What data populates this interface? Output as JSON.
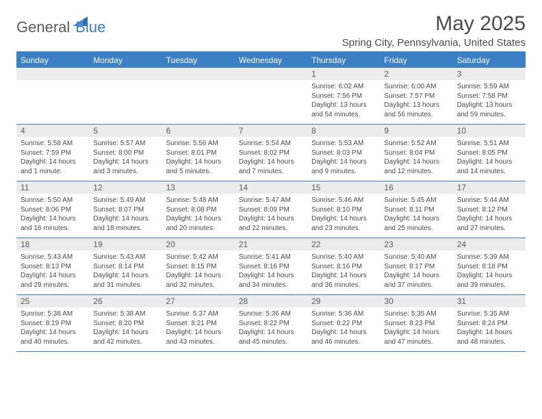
{
  "brand": {
    "general": "General",
    "blue": "Blue"
  },
  "header": {
    "monthTitle": "May 2025",
    "location": "Spring City, Pennsylvania, United States"
  },
  "colors": {
    "accent": "#3b7fc4",
    "headerText": "#ffffff",
    "dayNumBg": "#ececec",
    "textGray": "#4a4a4a",
    "logoGray": "#5a5a5a"
  },
  "dayNames": [
    "Sunday",
    "Monday",
    "Tuesday",
    "Wednesday",
    "Thursday",
    "Friday",
    "Saturday"
  ],
  "weeks": [
    [
      {
        "num": "",
        "sunrise": "",
        "sunset": "",
        "daylight": ""
      },
      {
        "num": "",
        "sunrise": "",
        "sunset": "",
        "daylight": ""
      },
      {
        "num": "",
        "sunrise": "",
        "sunset": "",
        "daylight": ""
      },
      {
        "num": "",
        "sunrise": "",
        "sunset": "",
        "daylight": ""
      },
      {
        "num": "1",
        "sunrise": "Sunrise: 6:02 AM",
        "sunset": "Sunset: 7:56 PM",
        "daylight": "Daylight: 13 hours and 54 minutes."
      },
      {
        "num": "2",
        "sunrise": "Sunrise: 6:00 AM",
        "sunset": "Sunset: 7:57 PM",
        "daylight": "Daylight: 13 hours and 56 minutes."
      },
      {
        "num": "3",
        "sunrise": "Sunrise: 5:59 AM",
        "sunset": "Sunset: 7:58 PM",
        "daylight": "Daylight: 13 hours and 59 minutes."
      }
    ],
    [
      {
        "num": "4",
        "sunrise": "Sunrise: 5:58 AM",
        "sunset": "Sunset: 7:59 PM",
        "daylight": "Daylight: 14 hours and 1 minute."
      },
      {
        "num": "5",
        "sunrise": "Sunrise: 5:57 AM",
        "sunset": "Sunset: 8:00 PM",
        "daylight": "Daylight: 14 hours and 3 minutes."
      },
      {
        "num": "6",
        "sunrise": "Sunrise: 5:56 AM",
        "sunset": "Sunset: 8:01 PM",
        "daylight": "Daylight: 14 hours and 5 minutes."
      },
      {
        "num": "7",
        "sunrise": "Sunrise: 5:54 AM",
        "sunset": "Sunset: 8:02 PM",
        "daylight": "Daylight: 14 hours and 7 minutes."
      },
      {
        "num": "8",
        "sunrise": "Sunrise: 5:53 AM",
        "sunset": "Sunset: 8:03 PM",
        "daylight": "Daylight: 14 hours and 9 minutes."
      },
      {
        "num": "9",
        "sunrise": "Sunrise: 5:52 AM",
        "sunset": "Sunset: 8:04 PM",
        "daylight": "Daylight: 14 hours and 12 minutes."
      },
      {
        "num": "10",
        "sunrise": "Sunrise: 5:51 AM",
        "sunset": "Sunset: 8:05 PM",
        "daylight": "Daylight: 14 hours and 14 minutes."
      }
    ],
    [
      {
        "num": "11",
        "sunrise": "Sunrise: 5:50 AM",
        "sunset": "Sunset: 8:06 PM",
        "daylight": "Daylight: 14 hours and 16 minutes."
      },
      {
        "num": "12",
        "sunrise": "Sunrise: 5:49 AM",
        "sunset": "Sunset: 8:07 PM",
        "daylight": "Daylight: 14 hours and 18 minutes."
      },
      {
        "num": "13",
        "sunrise": "Sunrise: 5:48 AM",
        "sunset": "Sunset: 8:08 PM",
        "daylight": "Daylight: 14 hours and 20 minutes."
      },
      {
        "num": "14",
        "sunrise": "Sunrise: 5:47 AM",
        "sunset": "Sunset: 8:09 PM",
        "daylight": "Daylight: 14 hours and 22 minutes."
      },
      {
        "num": "15",
        "sunrise": "Sunrise: 5:46 AM",
        "sunset": "Sunset: 8:10 PM",
        "daylight": "Daylight: 14 hours and 23 minutes."
      },
      {
        "num": "16",
        "sunrise": "Sunrise: 5:45 AM",
        "sunset": "Sunset: 8:11 PM",
        "daylight": "Daylight: 14 hours and 25 minutes."
      },
      {
        "num": "17",
        "sunrise": "Sunrise: 5:44 AM",
        "sunset": "Sunset: 8:12 PM",
        "daylight": "Daylight: 14 hours and 27 minutes."
      }
    ],
    [
      {
        "num": "18",
        "sunrise": "Sunrise: 5:43 AM",
        "sunset": "Sunset: 8:13 PM",
        "daylight": "Daylight: 14 hours and 29 minutes."
      },
      {
        "num": "19",
        "sunrise": "Sunrise: 5:43 AM",
        "sunset": "Sunset: 8:14 PM",
        "daylight": "Daylight: 14 hours and 31 minutes."
      },
      {
        "num": "20",
        "sunrise": "Sunrise: 5:42 AM",
        "sunset": "Sunset: 8:15 PM",
        "daylight": "Daylight: 14 hours and 32 minutes."
      },
      {
        "num": "21",
        "sunrise": "Sunrise: 5:41 AM",
        "sunset": "Sunset: 8:16 PM",
        "daylight": "Daylight: 14 hours and 34 minutes."
      },
      {
        "num": "22",
        "sunrise": "Sunrise: 5:40 AM",
        "sunset": "Sunset: 8:16 PM",
        "daylight": "Daylight: 14 hours and 36 minutes."
      },
      {
        "num": "23",
        "sunrise": "Sunrise: 5:40 AM",
        "sunset": "Sunset: 8:17 PM",
        "daylight": "Daylight: 14 hours and 37 minutes."
      },
      {
        "num": "24",
        "sunrise": "Sunrise: 5:39 AM",
        "sunset": "Sunset: 8:18 PM",
        "daylight": "Daylight: 14 hours and 39 minutes."
      }
    ],
    [
      {
        "num": "25",
        "sunrise": "Sunrise: 5:38 AM",
        "sunset": "Sunset: 8:19 PM",
        "daylight": "Daylight: 14 hours and 40 minutes."
      },
      {
        "num": "26",
        "sunrise": "Sunrise: 5:38 AM",
        "sunset": "Sunset: 8:20 PM",
        "daylight": "Daylight: 14 hours and 42 minutes."
      },
      {
        "num": "27",
        "sunrise": "Sunrise: 5:37 AM",
        "sunset": "Sunset: 8:21 PM",
        "daylight": "Daylight: 14 hours and 43 minutes."
      },
      {
        "num": "28",
        "sunrise": "Sunrise: 5:36 AM",
        "sunset": "Sunset: 8:22 PM",
        "daylight": "Daylight: 14 hours and 45 minutes."
      },
      {
        "num": "29",
        "sunrise": "Sunrise: 5:36 AM",
        "sunset": "Sunset: 8:22 PM",
        "daylight": "Daylight: 14 hours and 46 minutes."
      },
      {
        "num": "30",
        "sunrise": "Sunrise: 5:35 AM",
        "sunset": "Sunset: 8:23 PM",
        "daylight": "Daylight: 14 hours and 47 minutes."
      },
      {
        "num": "31",
        "sunrise": "Sunrise: 5:35 AM",
        "sunset": "Sunset: 8:24 PM",
        "daylight": "Daylight: 14 hours and 48 minutes."
      }
    ]
  ]
}
